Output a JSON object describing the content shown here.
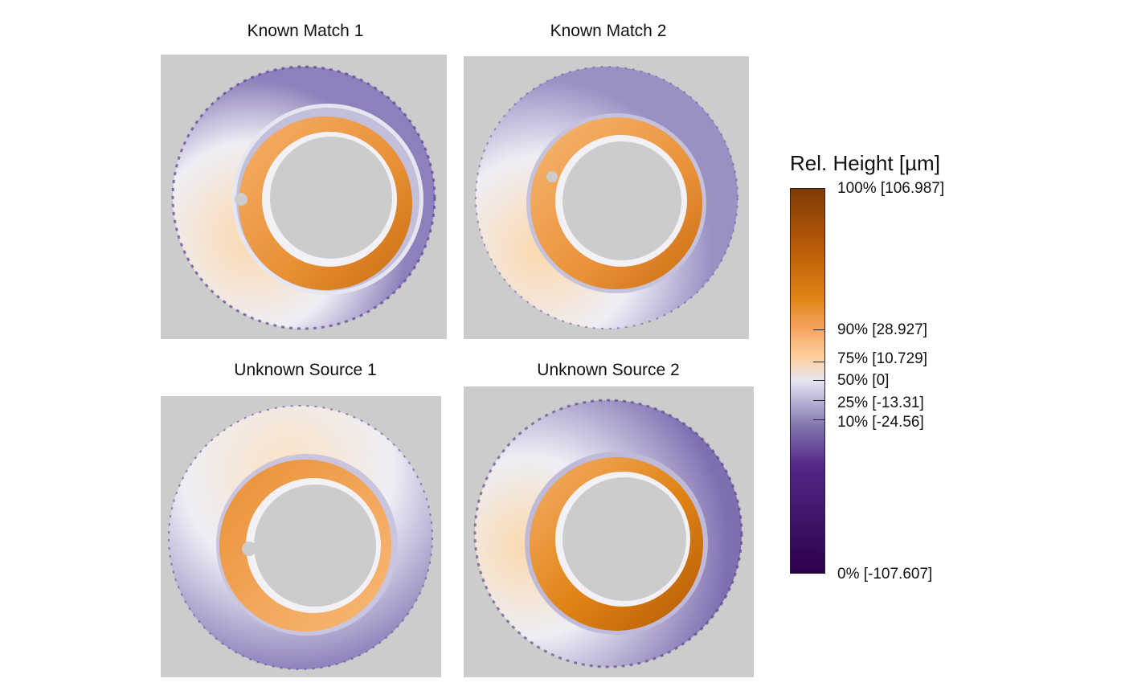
{
  "chart_data": {
    "type": "heatmap",
    "panels": [
      {
        "title": "Known Match 1"
      },
      {
        "title": "Known Match 2"
      },
      {
        "title": "Unknown Source 1"
      },
      {
        "title": "Unknown Source 2"
      }
    ],
    "colorbar": {
      "title": "Rel. Height [µm]",
      "ticks": [
        {
          "pct": 100,
          "label": "100% [106.987]"
        },
        {
          "pct": 90,
          "label": "90% [28.927]"
        },
        {
          "pct": 75,
          "label": "75% [10.729]"
        },
        {
          "pct": 50,
          "label": "50% [0]"
        },
        {
          "pct": 25,
          "label": "25% [-13.31]"
        },
        {
          "pct": 10,
          "label": "10% [-24.56]"
        },
        {
          "pct": 0,
          "label": "0% [-107.607]"
        }
      ],
      "colors": [
        "#2d004b",
        "#542788",
        "#8073ac",
        "#b2abd2",
        "#e6e6f0",
        "#fdd0a2",
        "#f5a25a",
        "#e08214",
        "#b35806",
        "#7f3b08"
      ],
      "background": "#cccccc"
    }
  }
}
